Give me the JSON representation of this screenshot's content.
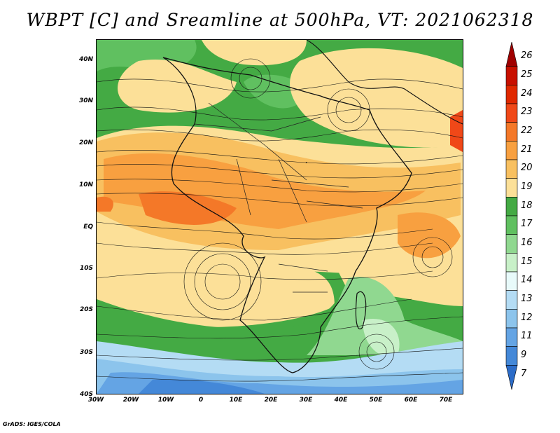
{
  "title": "WBPT [C] and Sreamline at 500hPa, VT: 2021062318",
  "footer": "GrADS: IGES/COLA",
  "map": {
    "region": "Africa and adjacent oceans",
    "lon_range": [
      -30,
      75
    ],
    "lat_range": [
      -40,
      45
    ],
    "lat_labels": [
      "40N",
      "30N",
      "20N",
      "10N",
      "EQ",
      "10S",
      "20S",
      "30S",
      "40S"
    ],
    "lon_labels": [
      "30W",
      "20W",
      "10W",
      "0",
      "10E",
      "20E",
      "30E",
      "40E",
      "50E",
      "60E",
      "70E"
    ],
    "overlay": "streamlines with arrows",
    "boundaries": "country and coastlines"
  },
  "colorbar": {
    "labels": [
      "26",
      "25",
      "24",
      "23",
      "22",
      "21",
      "20",
      "19",
      "18",
      "17",
      "16",
      "15",
      "14",
      "13",
      "12",
      "11",
      "9",
      "7"
    ],
    "colors": [
      "#a00000",
      "#c81000",
      "#e02800",
      "#f04818",
      "#f47828",
      "#f8a040",
      "#f8c060",
      "#fce098",
      "#44aa44",
      "#60c060",
      "#90d890",
      "#c8f0c8",
      "#e8fafa",
      "#b4dcf4",
      "#8cc4ec",
      "#64a4e4",
      "#4488d8",
      "#2c6cc8"
    ]
  }
}
